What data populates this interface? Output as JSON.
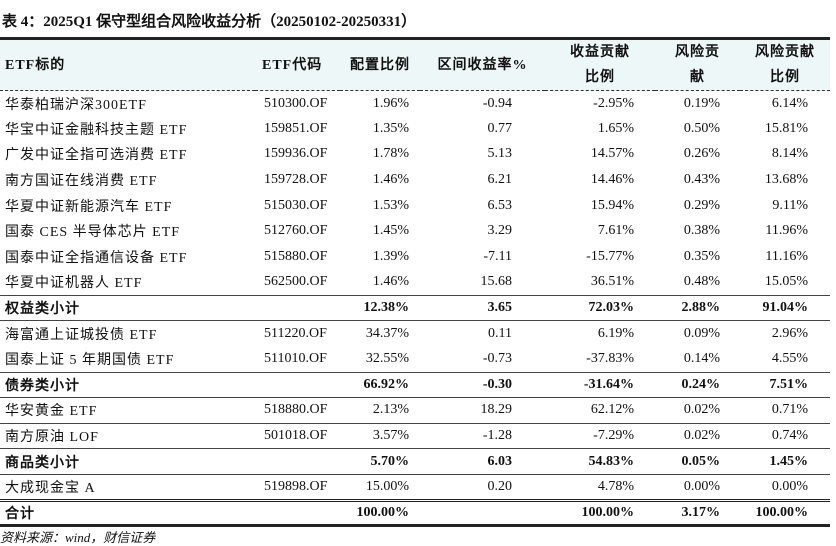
{
  "title": "表 4：2025Q1 保守型组合风险收益分析（20250102-20250331）",
  "headers": [
    "ETF标的",
    "ETF代码",
    "配置比例",
    "区间收益率%",
    "收益贡献比例",
    "风险贡献",
    "风险贡献比例"
  ],
  "rows": [
    {
      "name": "华泰柏瑞沪深300ETF",
      "code": "510300.OF",
      "weight": "1.96%",
      "return": "-0.94",
      "ret_contrib": "-2.95%",
      "risk": "0.19%",
      "risk_contrib": "6.14%"
    },
    {
      "name": "华宝中证金融科技主题 ETF",
      "code": "159851.OF",
      "weight": "1.35%",
      "return": "0.77",
      "ret_contrib": "1.65%",
      "risk": "0.50%",
      "risk_contrib": "15.81%"
    },
    {
      "name": "广发中证全指可选消费 ETF",
      "code": "159936.OF",
      "weight": "1.78%",
      "return": "5.13",
      "ret_contrib": "14.57%",
      "risk": "0.26%",
      "risk_contrib": "8.14%"
    },
    {
      "name": "南方国证在线消费 ETF",
      "code": "159728.OF",
      "weight": "1.46%",
      "return": "6.21",
      "ret_contrib": "14.46%",
      "risk": "0.43%",
      "risk_contrib": "13.68%"
    },
    {
      "name": "华夏中证新能源汽车 ETF",
      "code": "515030.OF",
      "weight": "1.53%",
      "return": "6.53",
      "ret_contrib": "15.94%",
      "risk": "0.29%",
      "risk_contrib": "9.11%"
    },
    {
      "name": "国泰 CES 半导体芯片 ETF",
      "code": "512760.OF",
      "weight": "1.45%",
      "return": "3.29",
      "ret_contrib": "7.61%",
      "risk": "0.38%",
      "risk_contrib": "11.96%"
    },
    {
      "name": "国泰中证全指通信设备 ETF",
      "code": "515880.OF",
      "weight": "1.39%",
      "return": "-7.11",
      "ret_contrib": "-15.77%",
      "risk": "0.35%",
      "risk_contrib": "11.16%"
    },
    {
      "name": "华夏中证机器人 ETF",
      "code": "562500.OF",
      "weight": "1.46%",
      "return": "15.68",
      "ret_contrib": "36.51%",
      "risk": "0.48%",
      "risk_contrib": "15.05%"
    },
    {
      "name": "权益类小计",
      "code": "",
      "weight": "12.38%",
      "return": "3.65",
      "ret_contrib": "72.03%",
      "risk": "2.88%",
      "risk_contrib": "91.04%",
      "subtotal": true
    },
    {
      "name": "海富通上证城投债 ETF",
      "code": "511220.OF",
      "weight": "34.37%",
      "return": "0.11",
      "ret_contrib": "6.19%",
      "risk": "0.09%",
      "risk_contrib": "2.96%"
    },
    {
      "name": "国泰上证 5 年期国债 ETF",
      "code": "511010.OF",
      "weight": "32.55%",
      "return": "-0.73",
      "ret_contrib": "-37.83%",
      "risk": "0.14%",
      "risk_contrib": "4.55%"
    },
    {
      "name": "债券类小计",
      "code": "",
      "weight": "66.92%",
      "return": "-0.30",
      "ret_contrib": "-31.64%",
      "risk": "0.24%",
      "risk_contrib": "7.51%",
      "subtotal": true
    },
    {
      "name": "华安黄金 ETF",
      "code": "518880.OF",
      "weight": "2.13%",
      "return": "18.29",
      "ret_contrib": "62.12%",
      "risk": "0.02%",
      "risk_contrib": "0.71%"
    },
    {
      "name": "南方原油 LOF",
      "code": "501018.OF",
      "weight": "3.57%",
      "return": "-1.28",
      "ret_contrib": "-7.29%",
      "risk": "0.02%",
      "risk_contrib": "0.74%"
    },
    {
      "name": "商品类小计",
      "code": "",
      "weight": "5.70%",
      "return": "6.03",
      "ret_contrib": "54.83%",
      "risk": "0.05%",
      "risk_contrib": "1.45%",
      "subtotal": true
    },
    {
      "name": "大成现金宝 A",
      "code": "519898.OF",
      "weight": "15.00%",
      "return": "0.20",
      "ret_contrib": "4.78%",
      "risk": "0.00%",
      "risk_contrib": "0.00%"
    }
  ],
  "total": {
    "name": "合计",
    "code": "",
    "weight": "100.00%",
    "return": "",
    "ret_contrib": "100.00%",
    "risk": "3.17%",
    "risk_contrib": "100.00%"
  },
  "source": "资料来源：wind，财信证券"
}
